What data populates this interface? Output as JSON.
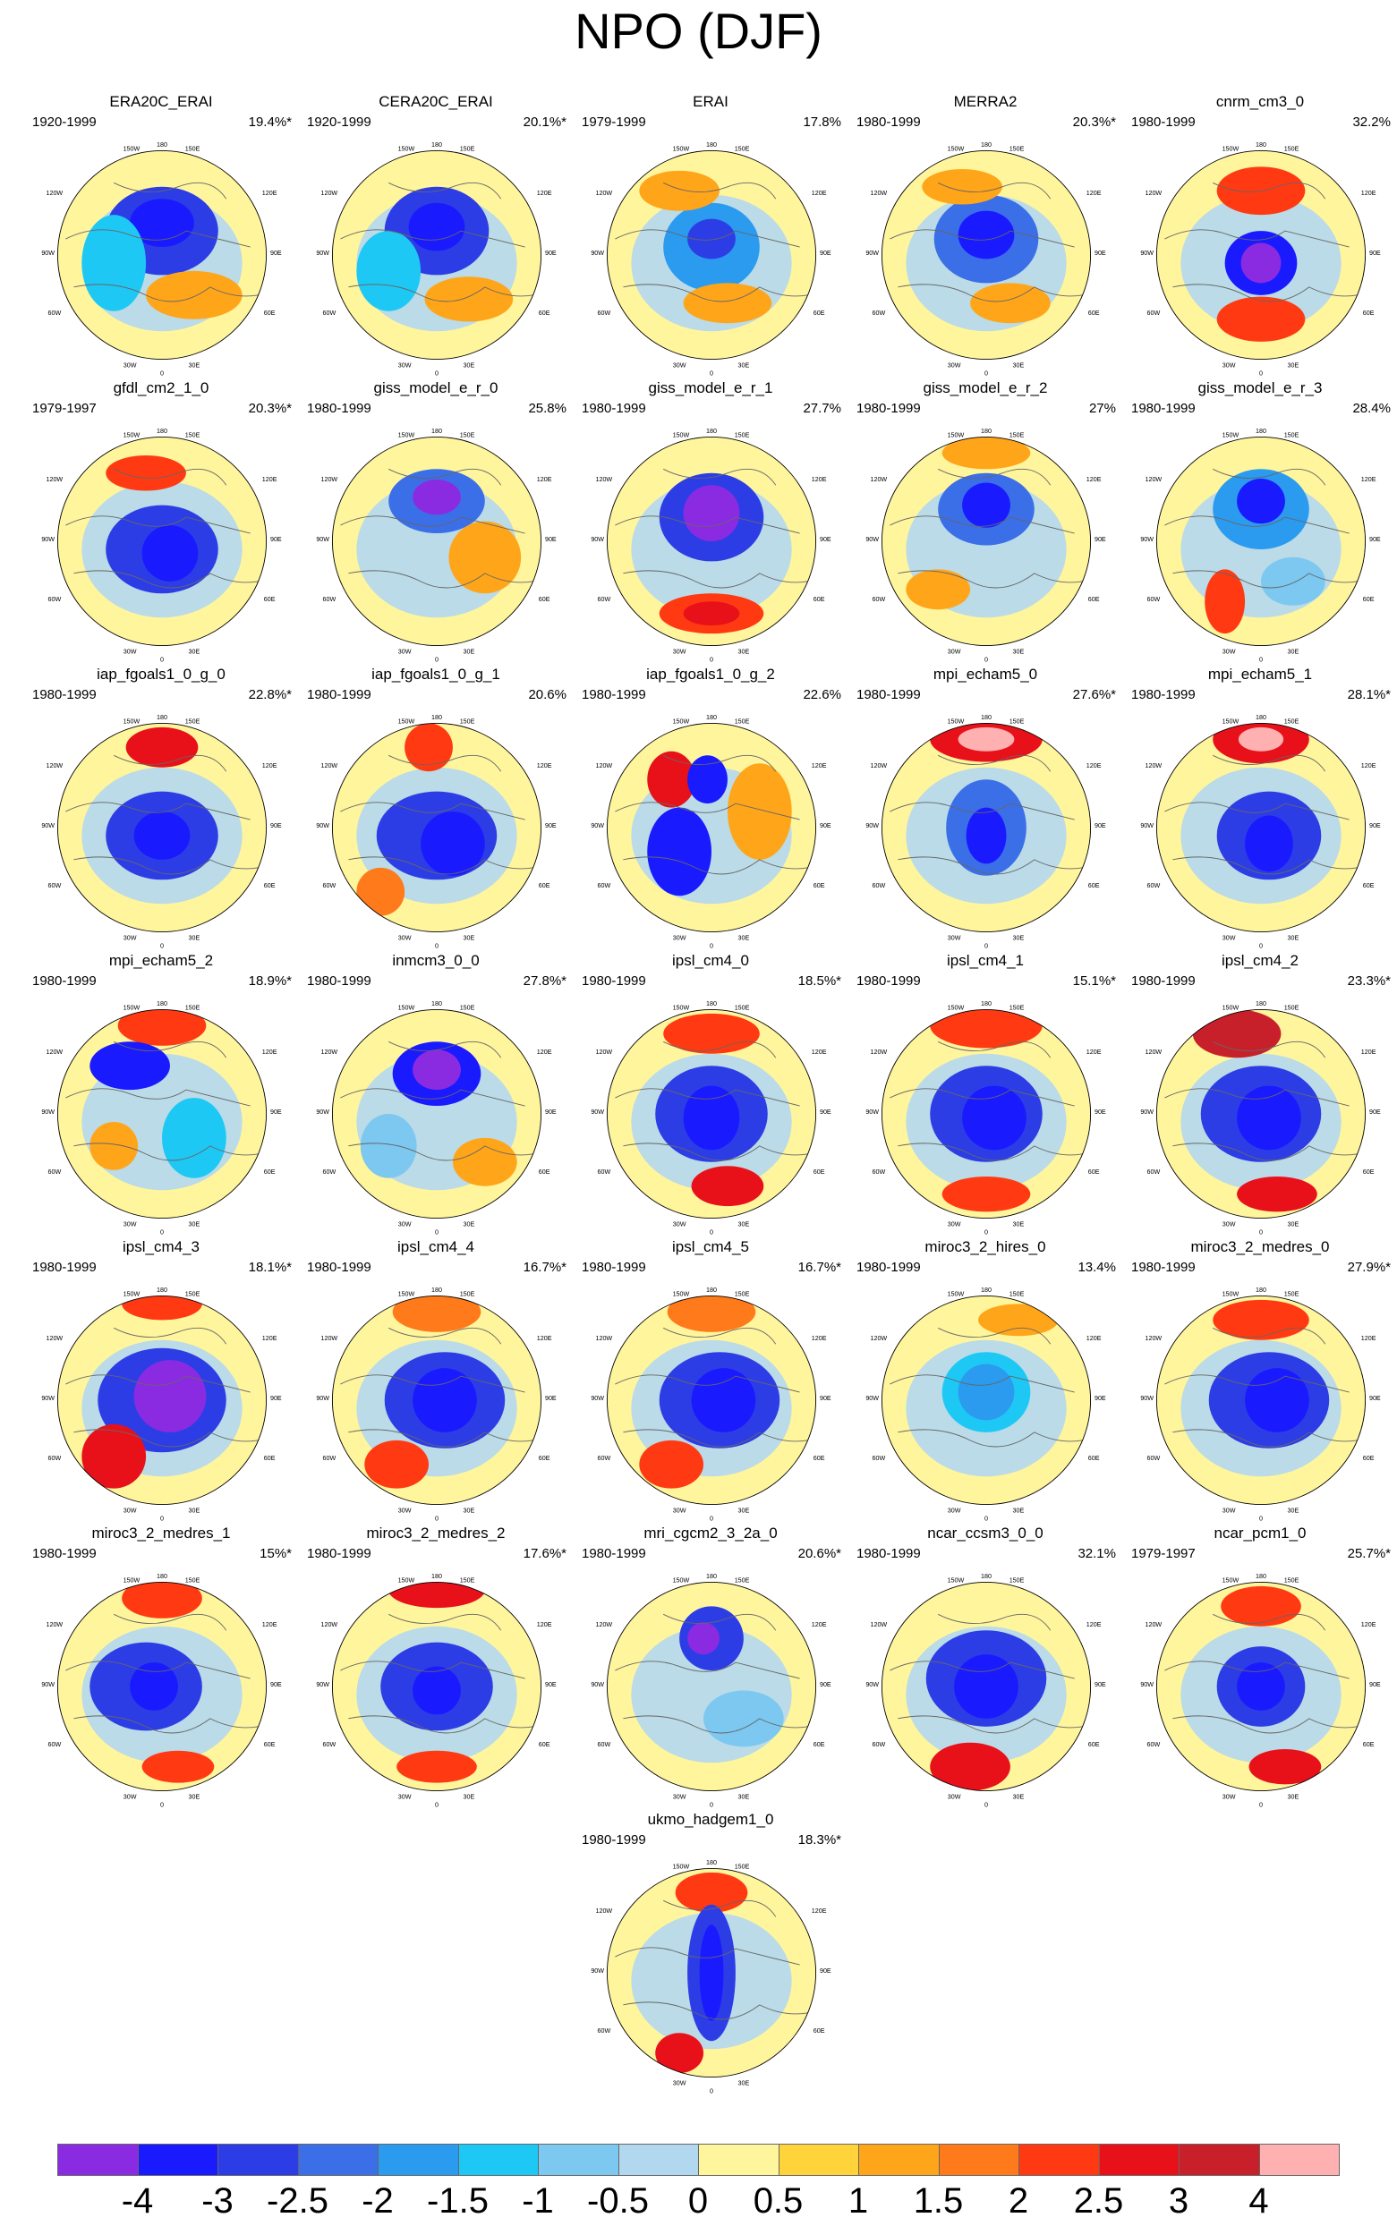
{
  "title": "NPO (DJF)",
  "lon_labels": [
    "180",
    "150W",
    "150E",
    "120W",
    "120E",
    "90W",
    "90E",
    "60W",
    "60E",
    "30W",
    "30E",
    "0"
  ],
  "panels": [
    {
      "name": "ERA20C_ERAI",
      "period": "1920-1999",
      "percent": "19.4%*"
    },
    {
      "name": "CERA20C_ERAI",
      "period": "1920-1999",
      "percent": "20.1%*"
    },
    {
      "name": "ERAI",
      "period": "1979-1999",
      "percent": "17.8%"
    },
    {
      "name": "MERRA2",
      "period": "1980-1999",
      "percent": "20.3%*"
    },
    {
      "name": "cnrm_cm3_0",
      "period": "1980-1999",
      "percent": "32.2%"
    },
    {
      "name": "gfdl_cm2_1_0",
      "period": "1979-1997",
      "percent": "20.3%*"
    },
    {
      "name": "giss_model_e_r_0",
      "period": "1980-1999",
      "percent": "25.8%"
    },
    {
      "name": "giss_model_e_r_1",
      "period": "1980-1999",
      "percent": "27.7%"
    },
    {
      "name": "giss_model_e_r_2",
      "period": "1980-1999",
      "percent": "27%"
    },
    {
      "name": "giss_model_e_r_3",
      "period": "1980-1999",
      "percent": "28.4%"
    },
    {
      "name": "iap_fgoals1_0_g_0",
      "period": "1980-1999",
      "percent": "22.8%*"
    },
    {
      "name": "iap_fgoals1_0_g_1",
      "period": "1980-1999",
      "percent": "20.6%"
    },
    {
      "name": "iap_fgoals1_0_g_2",
      "period": "1980-1999",
      "percent": "22.6%"
    },
    {
      "name": "mpi_echam5_0",
      "period": "1980-1999",
      "percent": "27.6%*"
    },
    {
      "name": "mpi_echam5_1",
      "period": "1980-1999",
      "percent": "28.1%*"
    },
    {
      "name": "mpi_echam5_2",
      "period": "1980-1999",
      "percent": "18.9%*"
    },
    {
      "name": "inmcm3_0_0",
      "period": "1980-1999",
      "percent": "27.8%*"
    },
    {
      "name": "ipsl_cm4_0",
      "period": "1980-1999",
      "percent": "18.5%*"
    },
    {
      "name": "ipsl_cm4_1",
      "period": "1980-1999",
      "percent": "15.1%*"
    },
    {
      "name": "ipsl_cm4_2",
      "period": "1980-1999",
      "percent": "23.3%*"
    },
    {
      "name": "ipsl_cm4_3",
      "period": "1980-1999",
      "percent": "18.1%*"
    },
    {
      "name": "ipsl_cm4_4",
      "period": "1980-1999",
      "percent": "16.7%*"
    },
    {
      "name": "ipsl_cm4_5",
      "period": "1980-1999",
      "percent": "16.7%*"
    },
    {
      "name": "miroc3_2_hires_0",
      "period": "1980-1999",
      "percent": "13.4%"
    },
    {
      "name": "miroc3_2_medres_0",
      "period": "1980-1999",
      "percent": "27.9%*"
    },
    {
      "name": "miroc3_2_medres_1",
      "period": "1980-1999",
      "percent": "15%*"
    },
    {
      "name": "miroc3_2_medres_2",
      "period": "1980-1999",
      "percent": "17.6%*"
    },
    {
      "name": "mri_cgcm2_3_2a_0",
      "period": "1980-1999",
      "percent": "20.6%*"
    },
    {
      "name": "ncar_ccsm3_0_0",
      "period": "1980-1999",
      "percent": "32.1%"
    },
    {
      "name": "ncar_pcm1_0",
      "period": "1979-1997",
      "percent": "25.7%*"
    },
    {
      "name": "ukmo_hadgem1_0",
      "period": "1980-1999",
      "percent": "18.3%*"
    }
  ],
  "colorbar": {
    "colors": [
      "#8a2be2",
      "#1a1aff",
      "#2d3de6",
      "#3b6fe8",
      "#2b9bf0",
      "#1ec8f5",
      "#7cc8f0",
      "#b2d8f0",
      "#fff59d",
      "#ffd43b",
      "#ffa51a",
      "#ff7a1a",
      "#ff3a12",
      "#e8111a",
      "#c8202a",
      "#ffb0b0"
    ],
    "labels": [
      "-4",
      "-3",
      "-2.5",
      "-2",
      "-1.5",
      "-1",
      "-0.5",
      "0",
      "0.5",
      "1",
      "1.5",
      "2",
      "2.5",
      "3",
      "4"
    ]
  }
}
